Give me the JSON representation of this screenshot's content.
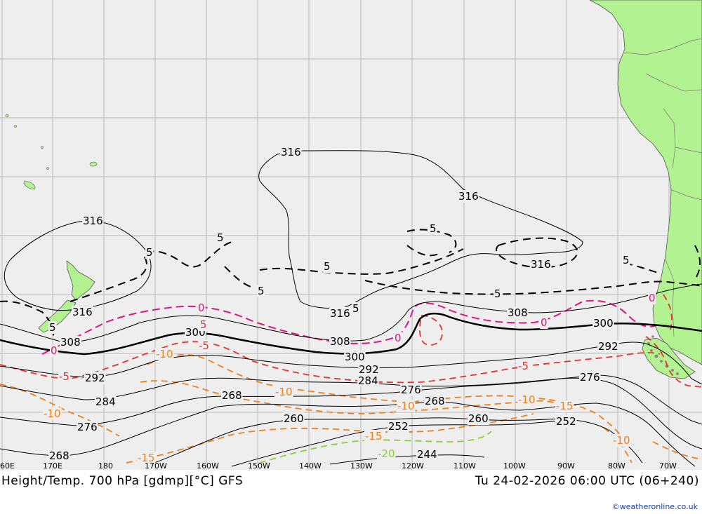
{
  "map": {
    "colors": {
      "ocean": "#eeeeee",
      "land": "#b2f290",
      "grid": "#b8b8b8",
      "height": "#000000",
      "temp_warm": "#e8322a",
      "temp_zero": "#e0147a",
      "temp_cold": "#f08018",
      "temp_very_cold": "#8ad030"
    },
    "longitude_labels": [
      "60E",
      "170E",
      "180",
      "170W",
      "160W",
      "150W",
      "140W",
      "130W",
      "120W",
      "110W",
      "100W",
      "90W",
      "80W",
      "70W"
    ],
    "height_labels": [
      "316",
      "316",
      "316",
      "316",
      "316",
      "316",
      "308",
      "308",
      "308",
      "300",
      "300",
      "300",
      "292",
      "292",
      "292",
      "284",
      "284",
      "276",
      "276",
      "276",
      "268",
      "268",
      "268",
      "260",
      "260",
      "252",
      "252",
      "244"
    ],
    "temp_labels": {
      "plus5": [
        "5",
        "5",
        "5",
        "5",
        "5",
        "5",
        "5",
        "5",
        "5"
      ],
      "warm": [
        "5",
        "-5",
        "-5",
        "-5"
      ],
      "zero": [
        "0",
        "0",
        "0",
        "0",
        "0"
      ],
      "cold": [
        "-10",
        "-10",
        "-10",
        "-10",
        "-10",
        "-10",
        "-15",
        "-15",
        "-15"
      ],
      "very_cold": [
        "-20"
      ]
    }
  },
  "footer": {
    "title": "Height/Temp. 700 hPa [gdmp][°C] GFS",
    "time": "Tu 24-02-2026 06:00 UTC (06+240)",
    "credit": "©weatheronline.co.uk"
  }
}
